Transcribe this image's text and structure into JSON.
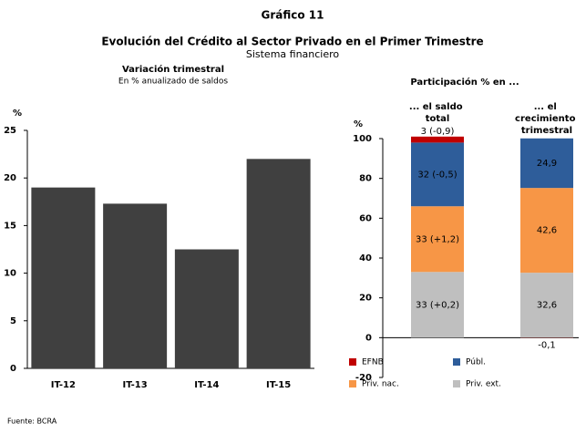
{
  "header": {
    "title": "Gráfico 11",
    "subtitle": "Evolución del Crédito al Sector Privado en el Primer Trimestre",
    "note": "Sistema financiero"
  },
  "chart_data": [
    {
      "type": "bar",
      "title": "Variación trimestral",
      "subtitle": "En % anualizado de saldos",
      "y_label": "%",
      "categories": [
        "IT-12",
        "IT-13",
        "IT-14",
        "IT-15"
      ],
      "values": [
        19,
        17.3,
        12.5,
        22
      ],
      "color": "#404040",
      "ylim": [
        0,
        25
      ],
      "yticks": [
        0,
        5,
        10,
        15,
        20,
        25
      ]
    },
    {
      "type": "stacked_bar",
      "title": "Participación % en ...",
      "y_label": "%",
      "categories": [
        "... el saldo total",
        "... el crecimiento trimestral"
      ],
      "series": [
        {
          "name": "EFNB",
          "color": "#c00000",
          "values": [
            3,
            -0.1
          ],
          "value_labels": [
            "3 (-0,9)",
            "-0,1"
          ]
        },
        {
          "name": "Públ.",
          "color": "#2e5d9a",
          "values": [
            32,
            24.9
          ],
          "value_labels": [
            "32 (-0,5)",
            "24,9"
          ]
        },
        {
          "name": "Priv. nac.",
          "color": "#f79646",
          "values": [
            33,
            42.6
          ],
          "value_labels": [
            "33 (+1,2)",
            "42,6"
          ]
        },
        {
          "name": "Priv. ext.",
          "color": "#bfbfbf",
          "values": [
            33,
            32.6
          ],
          "value_labels": [
            "33 (+0,2)",
            "32,6"
          ]
        }
      ],
      "ylim": [
        -20,
        100
      ],
      "yticks": [
        -20,
        0,
        20,
        40,
        60,
        80,
        100
      ]
    }
  ],
  "source": "Fuente: BCRA"
}
